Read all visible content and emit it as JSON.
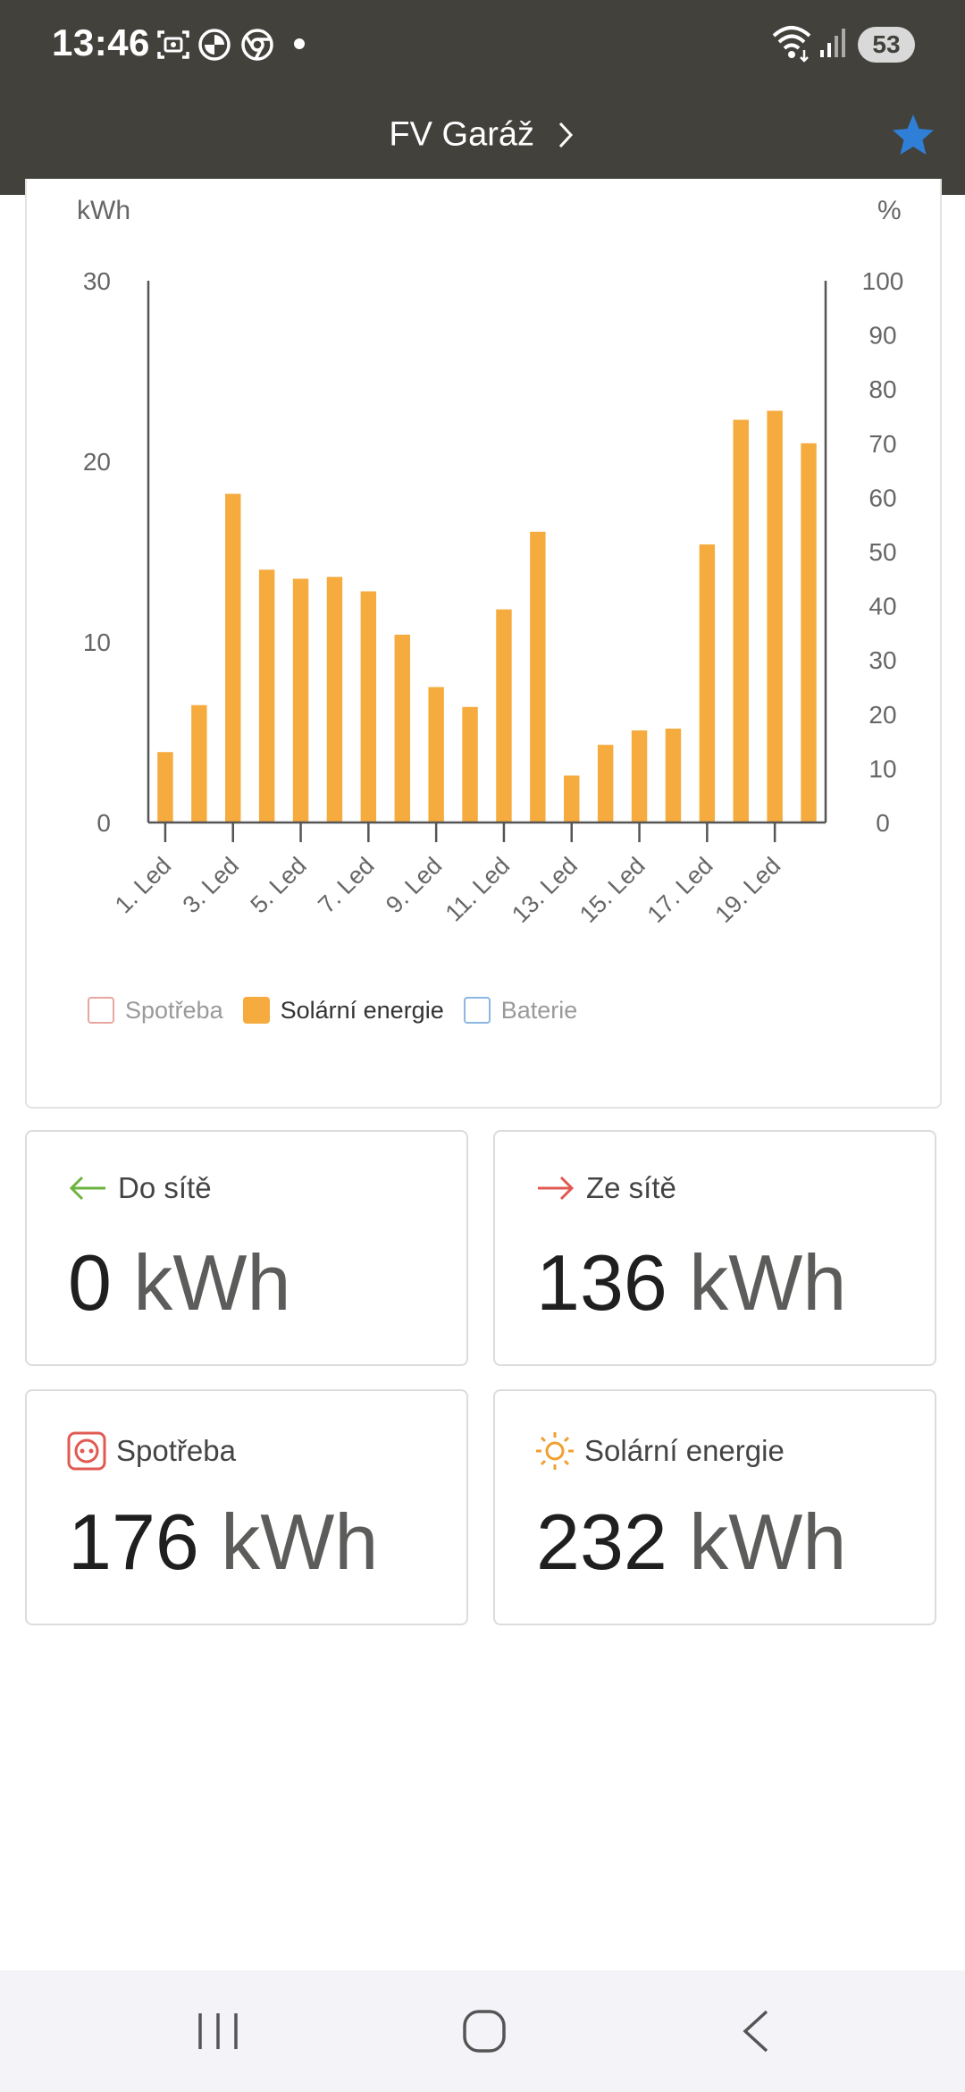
{
  "status_bar": {
    "time": "13:46",
    "battery": "53",
    "icons": [
      "screenshot-icon",
      "bmw-icon",
      "chrome-icon",
      "dot-icon",
      "wifi-icon",
      "signal-icon",
      "battery-icon"
    ]
  },
  "header": {
    "title": "FV Garáž",
    "chevron": "chevron-right-icon",
    "favorite_icon": "star-icon",
    "favorite_color": "#2f7fd6"
  },
  "chart_data": {
    "type": "bar",
    "y_left_label": "kWh",
    "y_right_label": "%",
    "y_left_ticks": [
      "30",
      "20",
      "10",
      "0"
    ],
    "y_right_ticks": [
      "100",
      "90",
      "80",
      "70",
      "60",
      "50",
      "40",
      "30",
      "20",
      "10",
      "0"
    ],
    "ylim": [
      0,
      30
    ],
    "x_tick_labels": [
      "1. Led",
      "3. Led",
      "5. Led",
      "7. Led",
      "9. Led",
      "11. Led",
      "13. Led",
      "15. Led",
      "17. Led",
      "19. Led"
    ],
    "categories": [
      "1. Led",
      "2. Led",
      "3. Led",
      "4. Led",
      "5. Led",
      "6. Led",
      "7. Led",
      "8. Led",
      "9. Led",
      "10. Led",
      "11. Led",
      "12. Led",
      "13. Led",
      "14. Led",
      "15. Led",
      "16. Led",
      "17. Led",
      "18. Led",
      "19. Led",
      "20. Led"
    ],
    "series": [
      {
        "name": "Solární energie",
        "color": "#f5ab3e",
        "values": [
          3.9,
          6.5,
          18.2,
          14.0,
          13.5,
          13.6,
          12.8,
          10.4,
          7.5,
          6.4,
          11.8,
          16.1,
          2.6,
          4.3,
          5.1,
          5.2,
          15.4,
          22.3,
          22.8,
          21.0
        ]
      }
    ],
    "legend": [
      {
        "name": "Spotřeba",
        "color": "#e8a6a0",
        "enabled": false
      },
      {
        "name": "Solární energie",
        "color": "#f5ab3e",
        "enabled": true
      },
      {
        "name": "Baterie",
        "color": "#8cb7e3",
        "enabled": false
      }
    ],
    "legend_placement": "bottom-left",
    "grid": false
  },
  "stats": {
    "do_site": {
      "label": "Do sítě",
      "value": "0",
      "unit": "kWh",
      "icon": "arrow-left-icon",
      "color": "#6db33f"
    },
    "ze_site": {
      "label": "Ze sítě",
      "value": "136",
      "unit": "kWh",
      "icon": "arrow-right-icon",
      "color": "#e05a52"
    },
    "spotreba": {
      "label": "Spotřeba",
      "value": "176",
      "unit": "kWh",
      "icon": "socket-icon",
      "color": "#e05a52"
    },
    "solarni": {
      "label": "Solární energie",
      "value": "232",
      "unit": "kWh",
      "icon": "sun-icon",
      "color": "#f0a030"
    }
  },
  "nav_bar": {
    "icons": [
      "recent-apps-icon",
      "home-icon",
      "back-icon"
    ]
  }
}
